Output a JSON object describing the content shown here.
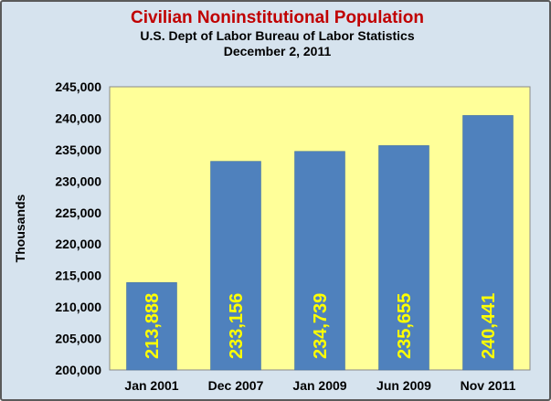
{
  "chart_data": {
    "type": "bar",
    "title": "Civilian Noninstitutional Population",
    "subtitle": [
      "U.S. Dept of Labor Bureau of Labor Statistics",
      "December 2, 2011"
    ],
    "xlabel": "",
    "ylabel": "Thousands",
    "categories": [
      "Jan 2001",
      "Dec 2007",
      "Jan 2009",
      "Jun 2009",
      "Nov 2011"
    ],
    "values": [
      213888,
      233156,
      234739,
      235655,
      240441
    ],
    "data_labels": [
      "213,888",
      "233,156",
      "234,739",
      "235,655",
      "240,441"
    ],
    "ylim": [
      200000,
      245000
    ],
    "y_ticks": [
      200000,
      205000,
      210000,
      215000,
      220000,
      225000,
      230000,
      235000,
      240000,
      245000
    ],
    "y_tick_labels": [
      "200,000",
      "205,000",
      "210,000",
      "215,000",
      "220,000",
      "225,000",
      "230,000",
      "235,000",
      "240,000",
      "245,000"
    ],
    "grid": false,
    "legend": "none",
    "colors": {
      "bar": "#4f81bd",
      "plot_background": "#ffff99",
      "chart_background": "#d6e3ee",
      "title": "#c00000",
      "data_label": "#ffff00"
    }
  }
}
